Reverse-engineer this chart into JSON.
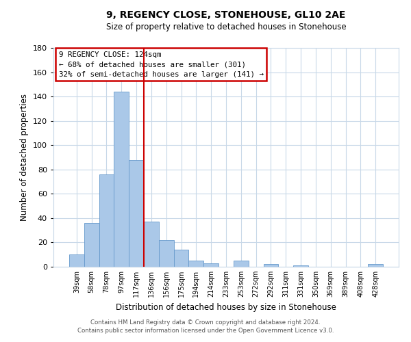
{
  "title": "9, REGENCY CLOSE, STONEHOUSE, GL10 2AE",
  "subtitle": "Size of property relative to detached houses in Stonehouse",
  "xlabel": "Distribution of detached houses by size in Stonehouse",
  "ylabel": "Number of detached properties",
  "bar_labels": [
    "39sqm",
    "58sqm",
    "78sqm",
    "97sqm",
    "117sqm",
    "136sqm",
    "156sqm",
    "175sqm",
    "194sqm",
    "214sqm",
    "233sqm",
    "253sqm",
    "272sqm",
    "292sqm",
    "311sqm",
    "331sqm",
    "350sqm",
    "369sqm",
    "389sqm",
    "408sqm",
    "428sqm"
  ],
  "bar_values": [
    10,
    36,
    76,
    144,
    88,
    37,
    22,
    14,
    5,
    3,
    0,
    5,
    0,
    2,
    0,
    1,
    0,
    0,
    0,
    0,
    2
  ],
  "bar_color": "#aac8e8",
  "bar_edge_color": "#6699cc",
  "vline_x": 4.5,
  "vline_color": "#cc0000",
  "ylim": [
    0,
    180
  ],
  "yticks": [
    0,
    20,
    40,
    60,
    80,
    100,
    120,
    140,
    160,
    180
  ],
  "annotation_title": "9 REGENCY CLOSE: 124sqm",
  "annotation_line1": "← 68% of detached houses are smaller (301)",
  "annotation_line2": "32% of semi-detached houses are larger (141) →",
  "footer_line1": "Contains HM Land Registry data © Crown copyright and database right 2024.",
  "footer_line2": "Contains public sector information licensed under the Open Government Licence v3.0.",
  "background_color": "#ffffff",
  "grid_color": "#c8d8e8"
}
